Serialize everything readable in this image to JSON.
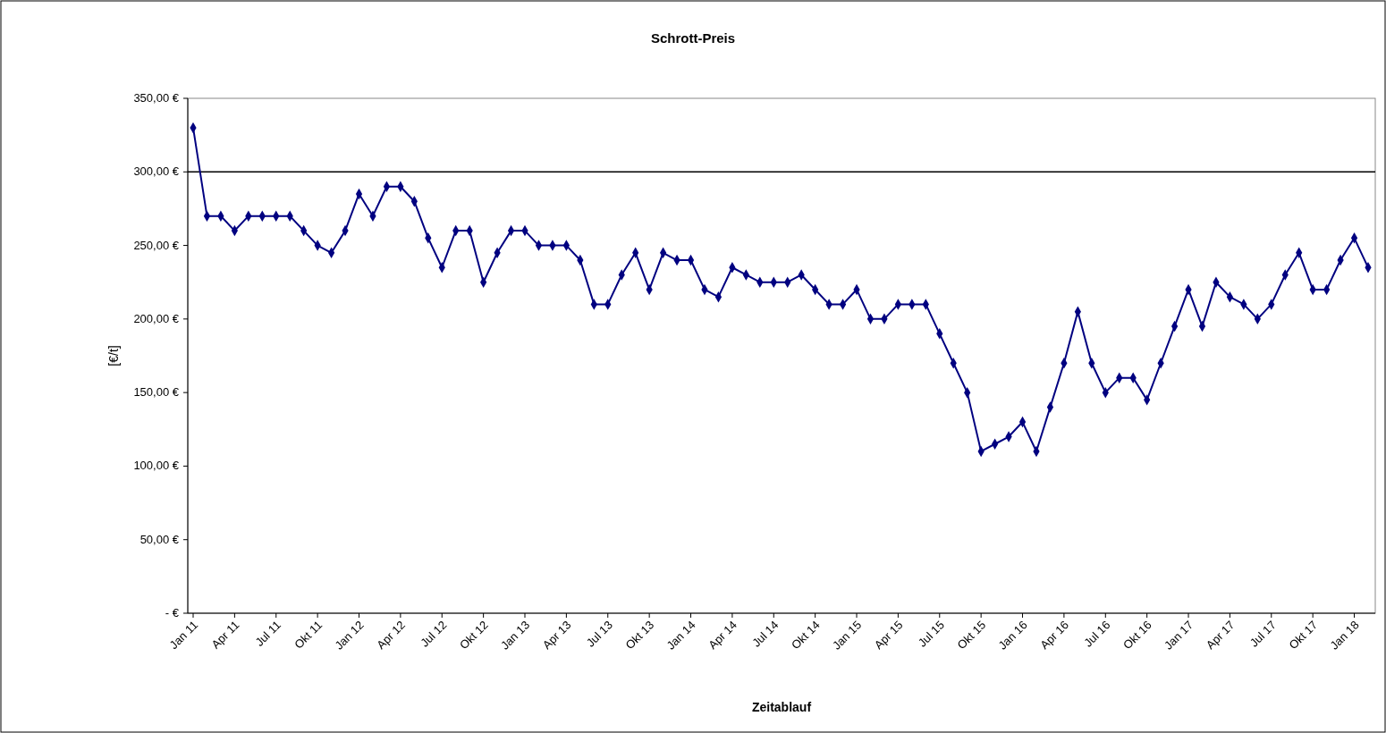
{
  "chart_data": {
    "type": "line",
    "title": "Schrott-Preis",
    "xlabel": "Zeitablauf",
    "ylabel": "[€/t]",
    "categories": [
      "Jan 11",
      null,
      null,
      "Apr 11",
      null,
      null,
      "Jul 11",
      null,
      null,
      "Okt 11",
      null,
      null,
      "Jan 12",
      null,
      null,
      "Apr 12",
      null,
      null,
      "Jul 12",
      null,
      null,
      "Okt 12",
      null,
      null,
      "Jan 13",
      null,
      null,
      "Apr 13",
      null,
      null,
      "Jul 13",
      null,
      null,
      "Okt 13",
      null,
      null,
      "Jan 14",
      null,
      null,
      "Apr 14",
      null,
      null,
      "Jul 14",
      null,
      null,
      "Okt 14",
      null,
      null,
      "Jan 15",
      null,
      null,
      "Apr 15",
      null,
      null,
      "Jul 15",
      null,
      null,
      "Okt 15",
      null,
      null,
      "Jan 16",
      null,
      null,
      "Apr 16",
      null,
      null,
      "Jul 16",
      null,
      null,
      "Okt 16",
      null,
      null,
      "Jan 17",
      null,
      null,
      "Apr 17",
      null,
      null,
      "Jul 17",
      null,
      null,
      "Okt 17",
      null,
      null,
      "Jan 18",
      null
    ],
    "series": [
      {
        "color": "#000080",
        "values": [
          330,
          270,
          270,
          260,
          270,
          270,
          270,
          270,
          260,
          250,
          245,
          260,
          285,
          270,
          290,
          290,
          280,
          255,
          235,
          260,
          260,
          225,
          245,
          260,
          260,
          250,
          250,
          250,
          240,
          210,
          210,
          230,
          245,
          220,
          245,
          240,
          240,
          220,
          215,
          235,
          230,
          225,
          225,
          225,
          230,
          220,
          210,
          210,
          220,
          200,
          200,
          210,
          210,
          210,
          190,
          170,
          150,
          110,
          115,
          120,
          130,
          110,
          140,
          170,
          205,
          170,
          150,
          160,
          160,
          145,
          170,
          195,
          220,
          195,
          225,
          215,
          210,
          200,
          210,
          230,
          245,
          220,
          220,
          240,
          255,
          235
        ]
      }
    ],
    "ylim": [
      0,
      350
    ],
    "yticks": [
      {
        "value": 0,
        "label": "-   €"
      },
      {
        "value": 50,
        "label": "50,00 €"
      },
      {
        "value": 100,
        "label": "100,00 €"
      },
      {
        "value": 150,
        "label": "150,00 €"
      },
      {
        "value": 200,
        "label": "200,00 €"
      },
      {
        "value": 250,
        "label": "250,00 €"
      },
      {
        "value": 300,
        "label": "300,00 €"
      },
      {
        "value": 350,
        "label": "350,00 €"
      }
    ],
    "ref_lines": [
      {
        "axis": "y",
        "value": 300,
        "color": "#000000"
      }
    ],
    "grid": false,
    "marker": "diamond",
    "line_style": "solid"
  }
}
